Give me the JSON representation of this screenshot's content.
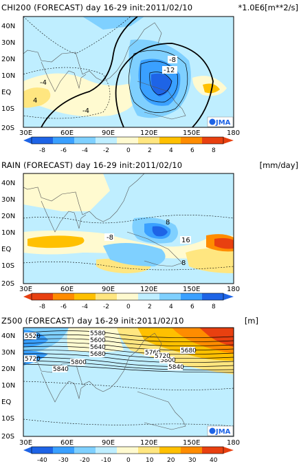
{
  "panels": [
    {
      "title": "CHI200 (FORECAST) day 16-29 init:2011/02/10",
      "unit": "*1.0E6[m**2/s]",
      "lat_labels": [
        "40N",
        "30N",
        "20N",
        "10N",
        "EQ",
        "10S",
        "20S"
      ],
      "lon_labels": [
        "30E",
        "60E",
        "90E",
        "120E",
        "150E",
        "180"
      ],
      "colorbar_ticks": [
        "-8",
        "-6",
        "-4",
        "-2",
        "0",
        "2",
        "4",
        "6",
        "8"
      ],
      "colorbar_colors": [
        "#1e64e6",
        "#3aa0ff",
        "#7fd0ff",
        "#bfeeff",
        "#fffad0",
        "#ffe680",
        "#ffc000",
        "#ff8c00",
        "#e84010"
      ],
      "contour_labels": [
        "-8",
        "-12",
        "-4",
        "-4",
        "4"
      ],
      "logo": "JMA"
    },
    {
      "title": "RAIN (FORECAST) day 16-29 init:2011/02/10",
      "unit": "[mm/day]",
      "lat_labels": [
        "40N",
        "30N",
        "20N",
        "10N",
        "EQ",
        "10S",
        "20S"
      ],
      "lon_labels": [
        "30E",
        "60E",
        "90E",
        "120E",
        "150E",
        "180"
      ],
      "colorbar_ticks": [
        "-8",
        "-6",
        "-4",
        "-2",
        "0",
        "2",
        "4",
        "6",
        "8"
      ],
      "colorbar_colors": [
        "#e84010",
        "#ff8c00",
        "#ffc000",
        "#ffe680",
        "#fffad0",
        "#bfeeff",
        "#7fd0ff",
        "#3aa0ff",
        "#1e64e6"
      ],
      "contour_labels": [
        "8",
        "-8",
        "16",
        "8"
      ]
    },
    {
      "title": "Z500 (FORECAST) day 16-29 init:2011/02/10",
      "unit": "[m]",
      "lat_labels": [
        "40N",
        "30N",
        "20N",
        "10N",
        "EQ",
        "10S",
        "20S"
      ],
      "lon_labels": [
        "30E",
        "60E",
        "90E",
        "120E",
        "150E",
        "180"
      ],
      "colorbar_ticks": [
        "-40",
        "-30",
        "-20",
        "-10",
        "0",
        "10",
        "20",
        "30",
        "40"
      ],
      "colorbar_colors": [
        "#1e64e6",
        "#3aa0ff",
        "#7fd0ff",
        "#bfeeff",
        "#fffad0",
        "#ffe680",
        "#ffc000",
        "#ff8c00",
        "#e84010"
      ],
      "contour_labels": [
        "5520",
        "5580",
        "5600",
        "5640",
        "5680",
        "5720",
        "5800",
        "5840",
        "5760",
        "5800",
        "5840",
        "5680",
        "5720"
      ],
      "logo": "JMA"
    }
  ]
}
